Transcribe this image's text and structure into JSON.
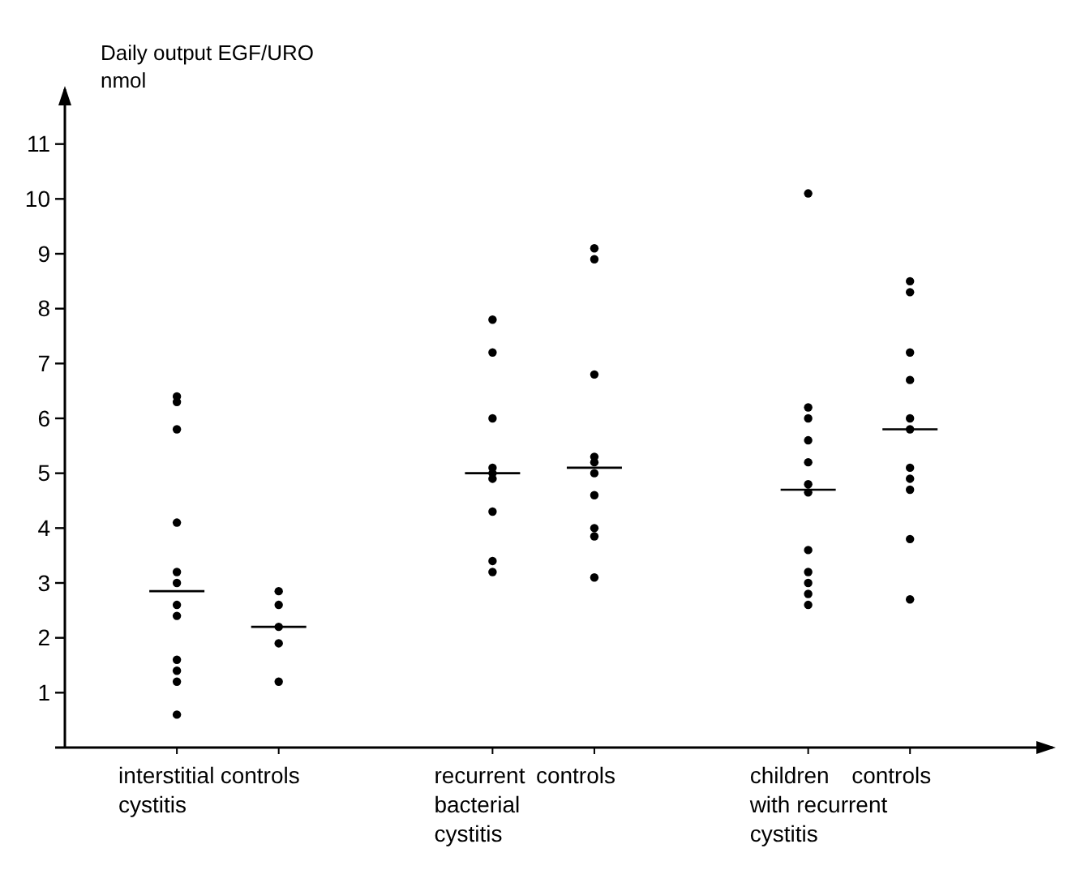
{
  "chart_data": {
    "type": "box",
    "ylabel": "Daily output EGF/URO\nnmol",
    "categories": [
      "interstitial\ncystitis",
      "controls",
      "recurrent\nbacterial\ncystitis",
      "controls",
      "children\nwith recurrent\ncystitis",
      "controls"
    ],
    "ylim": [
      0,
      12
    ],
    "yticks": [
      1,
      2,
      3,
      4,
      5,
      6,
      7,
      8,
      9,
      10,
      11
    ],
    "color": "#000000",
    "boxes": [
      {
        "low": 2.85,
        "q1": 2.85,
        "median": 2.85,
        "q3": 2.85,
        "high": 2.85,
        "outliers": [
          6.4,
          6.3,
          5.8,
          4.1,
          3.2,
          3.0,
          2.6,
          2.4,
          1.6,
          1.4,
          1.2,
          0.6
        ]
      },
      {
        "low": 2.2,
        "q1": 2.2,
        "median": 2.2,
        "q3": 2.2,
        "high": 2.2,
        "outliers": [
          2.85,
          2.6,
          2.2,
          1.9,
          1.2
        ]
      },
      {
        "low": 5.0,
        "q1": 5.0,
        "median": 5.0,
        "q3": 5.0,
        "high": 5.0,
        "outliers": [
          7.8,
          7.2,
          6.0,
          5.1,
          5.0,
          4.9,
          4.3,
          3.4,
          3.2
        ]
      },
      {
        "low": 5.1,
        "q1": 5.1,
        "median": 5.1,
        "q3": 5.1,
        "high": 5.1,
        "outliers": [
          9.1,
          8.9,
          6.8,
          5.3,
          5.2,
          5.0,
          4.6,
          4.0,
          3.85,
          3.1
        ]
      },
      {
        "low": 4.7,
        "q1": 4.7,
        "median": 4.7,
        "q3": 4.7,
        "high": 4.7,
        "outliers": [
          10.1,
          6.2,
          6.0,
          5.6,
          5.2,
          4.8,
          4.65,
          3.6,
          3.2,
          3.0,
          2.8,
          2.6
        ]
      },
      {
        "low": 5.8,
        "q1": 5.8,
        "median": 5.8,
        "q3": 5.8,
        "high": 5.8,
        "outliers": [
          8.5,
          8.3,
          7.2,
          6.7,
          6.0,
          5.8,
          5.1,
          4.9,
          4.7,
          3.8,
          2.7
        ]
      }
    ]
  }
}
